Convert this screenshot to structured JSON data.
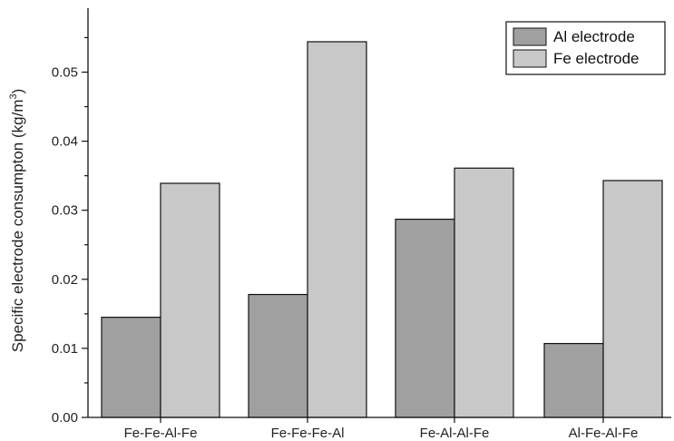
{
  "chart_data": {
    "type": "bar",
    "categories": [
      "Fe-Fe-Al-Fe",
      "Fe-Fe-Fe-Al",
      "Fe-Al-Al-Fe",
      "Al-Fe-Al-Fe"
    ],
    "series": [
      {
        "name": "Al electrode",
        "values": [
          0.0145,
          0.0178,
          0.0287,
          0.0107
        ],
        "color": "#a0a0a0"
      },
      {
        "name": "Fe electrode",
        "values": [
          0.0339,
          0.0544,
          0.0361,
          0.0343
        ],
        "color": "#c8c8c8"
      }
    ],
    "title": "",
    "xlabel": "",
    "ylabel": "Specific electrode consumpton (kg/m",
    "ylabel_superscript": "3",
    "ylabel_suffix": ")",
    "ylim": [
      0,
      0.059
    ],
    "yticks": [
      "0.00",
      "0.01",
      "0.02",
      "0.03",
      "0.04",
      "0.05"
    ],
    "legend_position": "top-right",
    "grid": false
  }
}
